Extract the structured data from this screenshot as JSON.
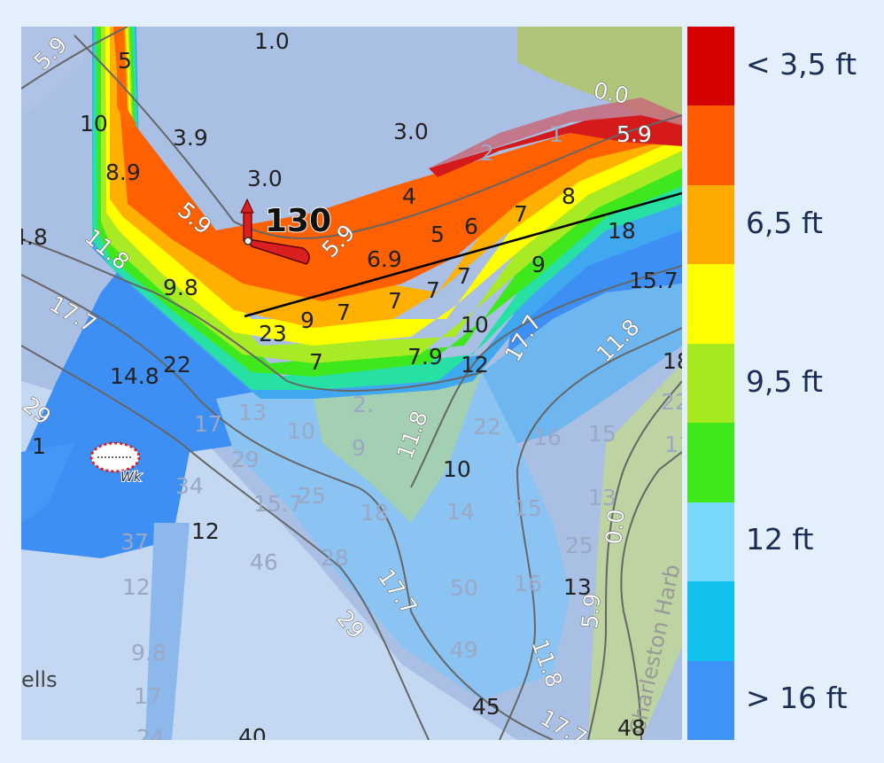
{
  "map": {
    "marker_number": "130",
    "wreck_label": "Wk",
    "place_labels": [
      "ells",
      "Charleston Harb"
    ],
    "depth_soundings": [
      "1.0",
      "5",
      "10",
      "3.9",
      "3.0",
      "8.9",
      "3.0",
      "2",
      "1",
      "4.8",
      "4",
      "5",
      "6",
      "7",
      "8",
      "18",
      "9.8",
      "6.9",
      "7",
      "7",
      "7",
      "9",
      "15.7",
      "23",
      "9",
      "7",
      "7",
      "7.9",
      "10",
      "12",
      "14.8",
      "22",
      "18",
      "2.",
      "9",
      "10",
      "13",
      "17",
      "22",
      "16",
      "15",
      "11",
      "1",
      "34",
      "29",
      "22",
      "10",
      "15.7",
      "25",
      "18",
      "14",
      "15",
      "13",
      "12",
      "37",
      "46",
      "28",
      "25",
      "12",
      "50",
      "16",
      "13",
      "9.8",
      "49",
      "17",
      "45",
      "24",
      "40",
      "48",
      "7.9"
    ],
    "contour_labels": [
      "5.9",
      "0.0",
      "5.9",
      "5.9",
      "5.9",
      "11.8",
      "17.7",
      "29",
      "11.8",
      "17.7",
      "11.8",
      "17.7",
      "29",
      "11.8",
      "17.7",
      "0.0",
      "5.9"
    ]
  },
  "legend": {
    "items": [
      {
        "label": "< 3,5 ft",
        "color": "#d60000"
      },
      {
        "label": "",
        "color": "#ff5a00"
      },
      {
        "label": "6,5 ft",
        "color": "#ffaa00"
      },
      {
        "label": "",
        "color": "#ffff00"
      },
      {
        "label": "9,5 ft",
        "color": "#a4ea1e"
      },
      {
        "label": "",
        "color": "#3ee81a"
      },
      {
        "label": "12 ft",
        "color": "#7ad8fb"
      },
      {
        "label": "",
        "color": "#12c2ee"
      },
      {
        "label": "> 16 ft",
        "color": "#3d93f6"
      }
    ]
  }
}
